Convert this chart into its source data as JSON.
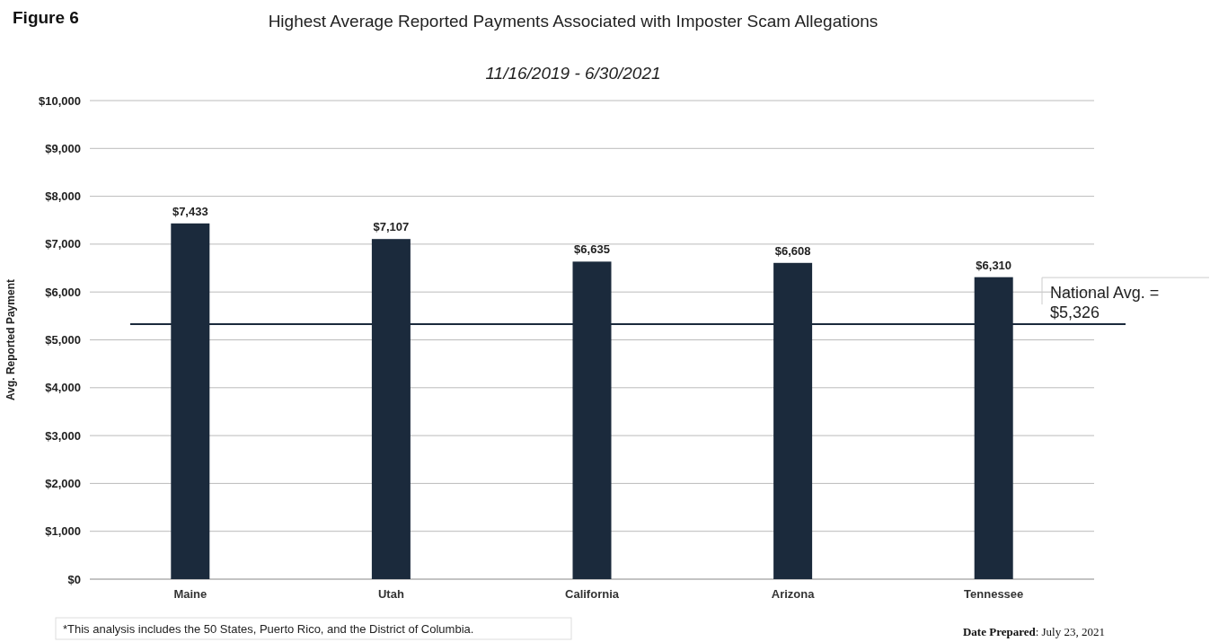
{
  "chart_data": {
    "type": "bar",
    "title": "Highest Average Reported Payments Associated with Imposter Scam Allegations",
    "subtitle": "11/16/2019 - 6/30/2021",
    "ylabel": "Avg. Reported Payment",
    "categories": [
      "Maine",
      "Utah",
      "California",
      "Arizona",
      "Tennessee"
    ],
    "values": [
      7433,
      7107,
      6635,
      6608,
      6310
    ],
    "value_labels": [
      "$7,433",
      "$7,107",
      "$6,635",
      "$6,608",
      "$6,310"
    ],
    "color": "#1b2a3c",
    "ylim": [
      0,
      10000
    ],
    "yticks": [
      {
        "value": 0,
        "label": "$0"
      },
      {
        "value": 1000,
        "label": "$1,000"
      },
      {
        "value": 2000,
        "label": "$2,000"
      },
      {
        "value": 3000,
        "label": "$3,000"
      },
      {
        "value": 4000,
        "label": "$4,000"
      },
      {
        "value": 5000,
        "label": "$5,000"
      },
      {
        "value": 6000,
        "label": "$6,000"
      },
      {
        "value": 7000,
        "label": "$7,000"
      },
      {
        "value": 8000,
        "label": "$8,000"
      },
      {
        "value": 9000,
        "label": "$9,000"
      },
      {
        "value": 10000,
        "label": "$10,000"
      }
    ],
    "grid": "y",
    "ref_lines": [
      {
        "axis": "y",
        "value": 5326,
        "label": "National Avg. = $5,326",
        "color": "#1b2a3c"
      }
    ],
    "annotations": [
      "Figure 6",
      "*This analysis includes the 50 States, Puerto Rico, and the District of Columbia.",
      "Date Prepared: July 23, 2021"
    ]
  }
}
